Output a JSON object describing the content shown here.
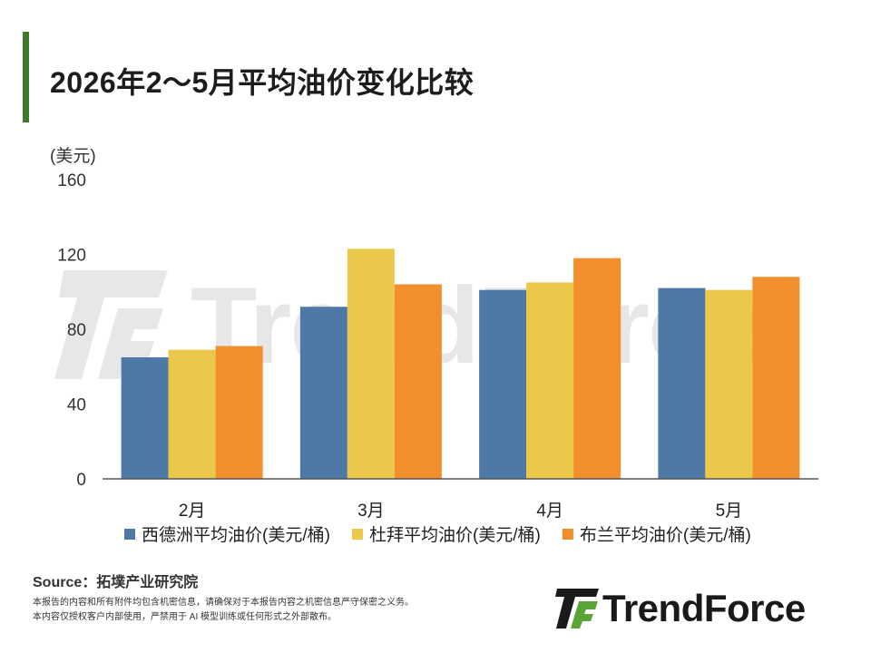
{
  "header": {
    "title": "2026年2～5月平均油价变化比较",
    "accent_color": "#3d7a2a"
  },
  "chart_data": {
    "type": "bar",
    "title": "",
    "unit_label": "(美元)",
    "xlabel": "",
    "ylabel": "",
    "categories": [
      "2月",
      "3月",
      "4月",
      "5月"
    ],
    "ylim": [
      0,
      160
    ],
    "yticks": [
      0,
      40,
      80,
      120,
      160
    ],
    "grid": false,
    "legend_position": "bottom",
    "series": [
      {
        "name": "西德洲平均油价(美元/桶)",
        "color": "#4e79a7",
        "values": [
          65,
          92,
          101,
          102
        ]
      },
      {
        "name": "杜拜平均油价(美元/桶)",
        "color": "#ebc84a",
        "values": [
          69,
          123,
          105,
          101
        ]
      },
      {
        "name": "布兰平均油价(美元/桶)",
        "color": "#f28e2b",
        "values": [
          71,
          104,
          118,
          108
        ]
      }
    ]
  },
  "footer": {
    "source": "Source：拓墣产业研究院",
    "disclaimer_line1": "本报告的内容和所有附件均包含机密信息，请确保对于本报告内容之机密信息严守保密之义务。",
    "disclaimer_line2": "本内容仅授权客户内部使用，严禁用于 AI 模型训练或任何形式之外部散布。"
  },
  "brand": {
    "name": "TrendForce",
    "logo_icon": "trendforce-logo-icon",
    "logo_green": "#5aa535",
    "logo_dark": "#1a1a1a"
  },
  "watermark": {
    "text": "TrendForce"
  }
}
